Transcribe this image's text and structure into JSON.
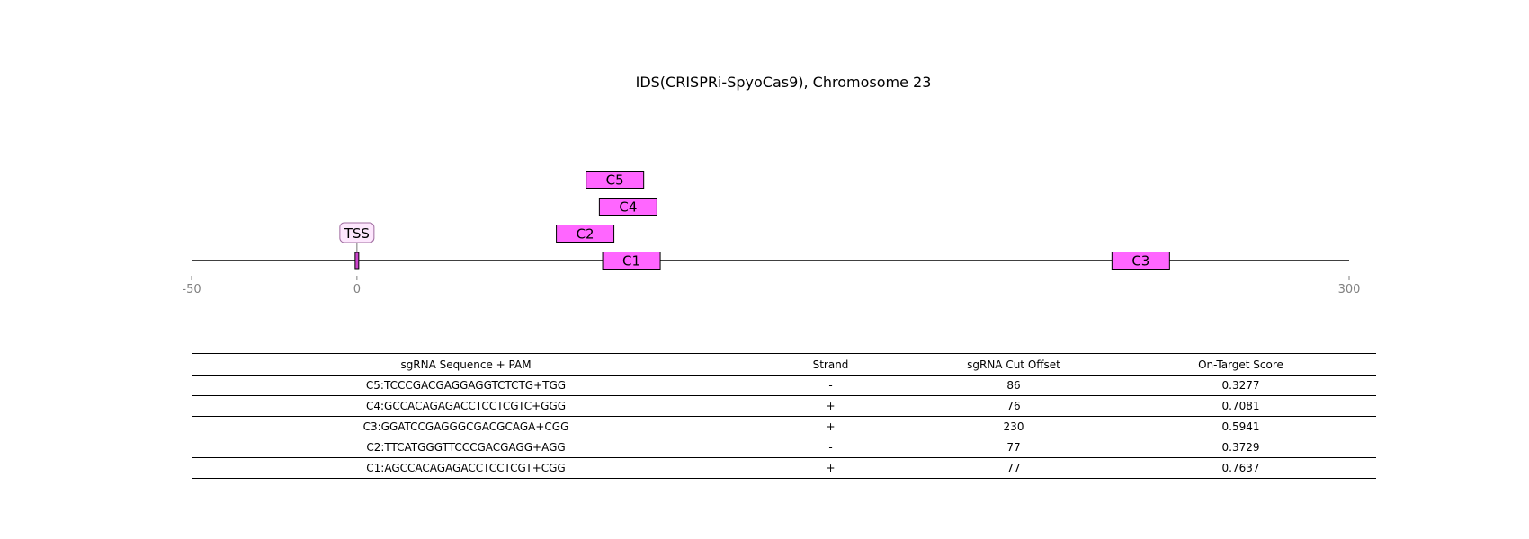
{
  "title": "IDS(CRISPRi-SpyoCas9), Chromosome 23",
  "colors": {
    "box_fill": "#ff66ff",
    "tss_fill": "#cc44cc",
    "tss_label_bg": "#fde7fd",
    "tss_label_border": "#a06ca0",
    "axis_tick": "#808080"
  },
  "axis": {
    "range": [
      -50,
      300
    ],
    "ticks": [
      "-50",
      "0",
      "300"
    ]
  },
  "tss": {
    "label": "TSS",
    "position": 0
  },
  "guides": [
    {
      "id": "C5",
      "start": 68,
      "end": 88,
      "row": 3
    },
    {
      "id": "C4",
      "start": 72,
      "end": 92,
      "row": 2
    },
    {
      "id": "C2",
      "start": 59,
      "end": 79,
      "row": 1
    },
    {
      "id": "C1",
      "start": 73,
      "end": 93,
      "row": 0
    },
    {
      "id": "C3",
      "start": 227,
      "end": 247,
      "row": 0
    }
  ],
  "table": {
    "headers": [
      "sgRNA Sequence + PAM",
      "Strand",
      "sgRNA Cut Offset",
      "On-Target Score"
    ],
    "rows": [
      [
        "C5:TCCCGACGAGGAGGTCTCTG+TGG",
        "-",
        "86",
        "0.3277"
      ],
      [
        "C4:GCCACAGAGACCTCCTCGTC+GGG",
        "+",
        "76",
        "0.7081"
      ],
      [
        "C3:GGATCCGAGGGCGACGCAGA+CGG",
        "+",
        "230",
        "0.5941"
      ],
      [
        "C2:TTCATGGGTTCCCGACGAGG+AGG",
        "-",
        "77",
        "0.3729"
      ],
      [
        "C1:AGCCACAGAGACCTCCTCGT+CGG",
        "+",
        "77",
        "0.7637"
      ]
    ]
  }
}
